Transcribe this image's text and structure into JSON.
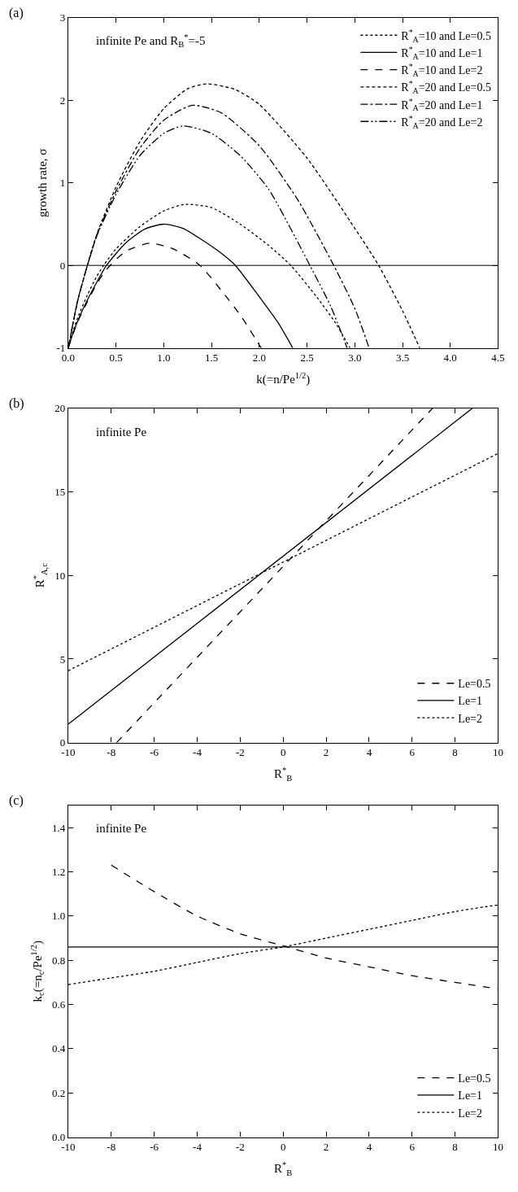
{
  "chart_data": [
    {
      "type": "line",
      "title": "(a)",
      "xlabel": "k(=n/Pe$^{1/2}$)",
      "ylabel": "growth rate, σ",
      "annotations": [
        "infinite Pe and R$_{B}$$^{*}$=-5"
      ],
      "legend": "top right",
      "grid": false,
      "xlim": [
        0,
        4.5
      ],
      "ylim": [
        -1,
        3
      ],
      "xticks": [
        {
          "value": 0,
          "label": "0.0"
        },
        {
          "value": 0.5,
          "label": "0.5"
        },
        {
          "value": 1,
          "label": "1.0"
        },
        {
          "value": 1.5,
          "label": "1.5"
        },
        {
          "value": 2,
          "label": "2.0"
        },
        {
          "value": 2.5,
          "label": "2.5"
        },
        {
          "value": 3,
          "label": "3.0"
        },
        {
          "value": 3.5,
          "label": "3.5"
        },
        {
          "value": 4,
          "label": "4.0"
        },
        {
          "value": 4.5,
          "label": "4.5"
        }
      ],
      "yticks": [
        -1,
        0,
        1,
        2,
        3
      ],
      "ref_lines": [
        {
          "axis": "y",
          "value": 0,
          "color": "#000000"
        }
      ],
      "series": [
        {
          "name": "R$^{*}$$_{A}$=10 and Le=0.5",
          "color": "#000000",
          "line_style": "dotted",
          "x": [
            0,
            0.05,
            0.1,
            0.2,
            0.3,
            0.37,
            0.5,
            0.75,
            1.0,
            1.22,
            1.5,
            1.8,
            2.1,
            2.33,
            2.6,
            2.8,
            2.95
          ],
          "values": [
            -1,
            -0.8,
            -0.63,
            -0.36,
            -0.13,
            0,
            0.2,
            0.47,
            0.66,
            0.74,
            0.7,
            0.5,
            0.24,
            0,
            -0.38,
            -0.7,
            -1
          ]
        },
        {
          "name": "R$^{*}$$_{A}$=10 and Le=1",
          "color": "#000000",
          "line_style": "solid",
          "x": [
            0,
            0.05,
            0.1,
            0.2,
            0.3,
            0.4,
            0.6,
            0.8,
            1.0,
            1.2,
            1.4,
            1.6,
            1.75,
            2.0,
            2.2,
            2.35
          ],
          "values": [
            -1,
            -0.82,
            -0.67,
            -0.42,
            -0.2,
            0,
            0.27,
            0.44,
            0.5,
            0.45,
            0.31,
            0.15,
            0,
            -0.38,
            -0.7,
            -1
          ]
        },
        {
          "name": "R$^{*}$$_{A}$=10 and Le=2",
          "color": "#000000",
          "line_style": "dashed",
          "x": [
            0,
            0.05,
            0.1,
            0.2,
            0.3,
            0.4,
            0.6,
            0.85,
            1.1,
            1.38,
            1.6,
            1.8,
            2.02
          ],
          "values": [
            -1,
            -0.83,
            -0.68,
            -0.44,
            -0.22,
            -0.05,
            0.17,
            0.27,
            0.2,
            0,
            -0.3,
            -0.6,
            -1
          ]
        },
        {
          "name": "R$^{*}$$_{A}$=20 and Le=0.5",
          "color": "#000000",
          "line_style": "shortdashed",
          "x": [
            0,
            0.05,
            0.1,
            0.2,
            0.3,
            0.5,
            0.75,
            1.0,
            1.25,
            1.45,
            1.75,
            2.0,
            2.5,
            3.0,
            3.25,
            3.5,
            3.68
          ],
          "values": [
            -1,
            -0.7,
            -0.42,
            0,
            0.38,
            0.95,
            1.5,
            1.9,
            2.14,
            2.2,
            2.13,
            1.95,
            1.3,
            0.45,
            0,
            -0.55,
            -1
          ]
        },
        {
          "name": "R$^{*}$$_{A}$=20 and Le=1",
          "color": "#000000",
          "line_style": "dashdot",
          "x": [
            0,
            0.05,
            0.1,
            0.2,
            0.3,
            0.5,
            0.75,
            1.0,
            1.3,
            1.6,
            2.0,
            2.4,
            2.78,
            3.0,
            3.15
          ],
          "values": [
            -1,
            -0.7,
            -0.42,
            0,
            0.37,
            0.9,
            1.42,
            1.76,
            1.94,
            1.85,
            1.45,
            0.8,
            0,
            -0.52,
            -1
          ]
        },
        {
          "name": "R$^{*}$$_{A}$=20 and Le=2",
          "color": "#000000",
          "line_style": "dashdotdot",
          "x": [
            0,
            0.05,
            0.1,
            0.2,
            0.3,
            0.5,
            0.75,
            1.0,
            1.2,
            1.5,
            1.8,
            2.1,
            2.53,
            2.75,
            2.92
          ],
          "values": [
            -1,
            -0.7,
            -0.42,
            0,
            0.36,
            0.86,
            1.33,
            1.6,
            1.69,
            1.6,
            1.33,
            0.92,
            0,
            -0.5,
            -1
          ]
        }
      ]
    },
    {
      "type": "line",
      "title": "(b)",
      "xlabel": "R$^{*}$$_{B}$",
      "ylabel": "R$^{*}$$_{A,c}$",
      "annotations": [
        "infinite Pe"
      ],
      "legend": "bottom right",
      "grid": false,
      "xlim": [
        -10,
        10
      ],
      "ylim": [
        0,
        20
      ],
      "xticks": [
        -10,
        -8,
        -6,
        -4,
        -2,
        0,
        2,
        4,
        6,
        8,
        10
      ],
      "yticks": [
        0,
        5,
        10,
        15,
        20
      ],
      "series": [
        {
          "name": "Le=0.5",
          "color": "#000000",
          "line_style": "dashed",
          "x": [
            -7.75,
            6.95
          ],
          "values": [
            0,
            20
          ]
        },
        {
          "name": "Le=1",
          "color": "#000000",
          "line_style": "solid",
          "x": [
            -10,
            8.8
          ],
          "values": [
            1.1,
            20
          ]
        },
        {
          "name": "Le=2",
          "color": "#000000",
          "line_style": "dotted",
          "x": [
            -10,
            10
          ],
          "values": [
            4.3,
            17.3
          ]
        }
      ]
    },
    {
      "type": "line",
      "title": "(c)",
      "xlabel": "R$^{*}$$_{B}$",
      "ylabel": "k$_{c}$(=n$_{c}$/Pe$^{1/2}$)",
      "annotations": [
        "infinite Pe"
      ],
      "legend": "bottom right",
      "grid": false,
      "xlim": [
        -10,
        10
      ],
      "ylim": [
        0,
        1.5
      ],
      "xticks": [
        -10,
        -8,
        -6,
        -4,
        -2,
        0,
        2,
        4,
        6,
        8,
        10
      ],
      "yticks": [
        {
          "value": 0,
          "label": "0.0"
        },
        {
          "value": 0.2,
          "label": "0.2"
        },
        {
          "value": 0.4,
          "label": "0.4"
        },
        {
          "value": 0.6,
          "label": "0.6"
        },
        {
          "value": 0.8,
          "label": "0.8"
        },
        {
          "value": 1.0,
          "label": "1.0"
        },
        {
          "value": 1.2,
          "label": "1.2"
        },
        {
          "value": 1.4,
          "label": "1.4"
        }
      ],
      "series": [
        {
          "name": "Le=0.5",
          "color": "#000000",
          "line_style": "dashed",
          "x": [
            -8,
            -6,
            -4,
            -2,
            0,
            2,
            4,
            6,
            8,
            10
          ],
          "values": [
            1.23,
            1.11,
            1.0,
            0.92,
            0.865,
            0.81,
            0.77,
            0.73,
            0.7,
            0.67
          ]
        },
        {
          "name": "Le=1",
          "color": "#000000",
          "line_style": "solid",
          "x": [
            -10,
            10
          ],
          "values": [
            0.86,
            0.86
          ]
        },
        {
          "name": "Le=2",
          "color": "#000000",
          "line_style": "dotted",
          "x": [
            -10,
            -8,
            -6,
            -4,
            -2,
            0,
            2,
            4,
            6,
            8,
            10
          ],
          "values": [
            0.69,
            0.72,
            0.75,
            0.79,
            0.83,
            0.86,
            0.9,
            0.94,
            0.98,
            1.02,
            1.05
          ]
        }
      ]
    }
  ]
}
